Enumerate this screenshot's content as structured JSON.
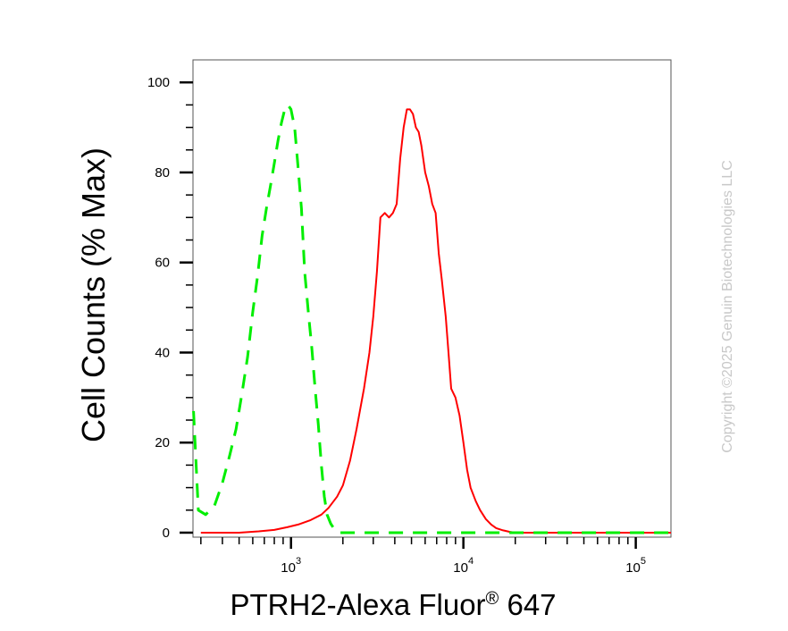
{
  "chart_data": {
    "type": "line",
    "xlabel": "PTRH2-Alexa Fluor",
    "xlabel_superscript": "®",
    "xlabel_suffix": " 647",
    "ylabel": "Cell Counts (% Max)",
    "x_scale": "log",
    "xlim": [
      270,
      160000
    ],
    "ylim": [
      -1,
      105
    ],
    "y_ticks": [
      0,
      20,
      40,
      60,
      80,
      100
    ],
    "x_tick_labels": [
      {
        "value": 1000,
        "base": "10",
        "exp": "3"
      },
      {
        "value": 10000,
        "base": "10",
        "exp": "4"
      },
      {
        "value": 100000,
        "base": "10",
        "exp": "5"
      }
    ],
    "grid": false,
    "series": [
      {
        "color": "#ff0000",
        "style": "solid",
        "x": [
          300,
          500,
          650,
          800,
          950,
          1100,
          1300,
          1500,
          1650,
          1850,
          2000,
          2200,
          2400,
          2650,
          2850,
          3000,
          3150,
          3300,
          3500,
          3700,
          3900,
          4100,
          4300,
          4500,
          4700,
          4900,
          5100,
          5300,
          5500,
          5700,
          6000,
          6300,
          6600,
          6900,
          7200,
          7500,
          7900,
          8200,
          8500,
          9000,
          9500,
          10000,
          10500,
          11000,
          11800,
          12500,
          13500,
          14500,
          15500,
          17000,
          18500,
          20000,
          25000,
          40000,
          80000,
          160000
        ],
        "y": [
          0,
          0,
          0.3,
          0.6,
          1.2,
          1.8,
          2.8,
          4,
          5.5,
          8,
          10.5,
          16,
          23,
          32,
          40,
          48,
          58,
          70,
          71,
          70,
          71,
          73,
          83,
          90,
          94,
          94,
          93,
          90,
          89,
          86,
          80,
          77,
          73,
          71,
          62,
          56,
          48,
          40,
          32,
          30,
          26,
          20,
          14,
          10,
          7,
          5,
          3,
          1.8,
          1,
          0.5,
          0.2,
          0,
          0,
          0,
          0,
          0
        ]
      },
      {
        "color": "#00ee00",
        "style": "dashed",
        "x": [
          272,
          290,
          320,
          360,
          400,
          440,
          480,
          520,
          560,
          600,
          640,
          680,
          720,
          760,
          800,
          840,
          880,
          920,
          960,
          1000,
          1050,
          1100,
          1150,
          1200,
          1260,
          1320,
          1380,
          1440,
          1500,
          1560,
          1620,
          1700,
          1800,
          1900,
          2100,
          2500,
          4000,
          10000,
          30000,
          160000
        ],
        "y": [
          27,
          5,
          4,
          6,
          11,
          17,
          23,
          31,
          39,
          49,
          57,
          66,
          72,
          77,
          82,
          87,
          91,
          94,
          95,
          94,
          90,
          81,
          72,
          58,
          49,
          41,
          32,
          24,
          15,
          8,
          4,
          2,
          0.5,
          0,
          0,
          0,
          0,
          0,
          0,
          0
        ]
      }
    ]
  },
  "watermark": "Copyright ©2025 Genuin Biotechnologies LLC"
}
